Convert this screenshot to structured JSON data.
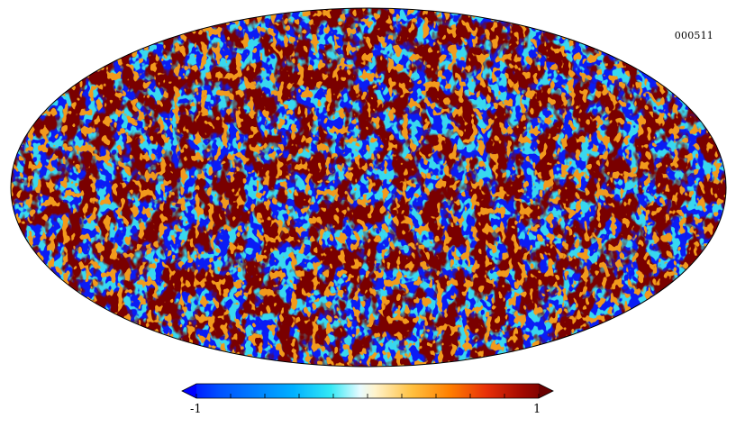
{
  "map": {
    "label": "000511",
    "projection": "mollweide",
    "colormap": "jet-like",
    "dominant_colors": [
      "#0a1cf5",
      "#7d0500",
      "#30d8f0",
      "#f7f3d0",
      "#f2a020",
      "#e8300a"
    ]
  },
  "colorbar": {
    "min_label": "-1",
    "max_label": "1",
    "tick_count": 10,
    "extend": "both",
    "stops": [
      "#0000ff",
      "#0050ff",
      "#00b0ff",
      "#33e8f5",
      "#e8fbff",
      "#fff3cc",
      "#ffc040",
      "#ff8000",
      "#e83008",
      "#a00800",
      "#6a0000"
    ]
  }
}
